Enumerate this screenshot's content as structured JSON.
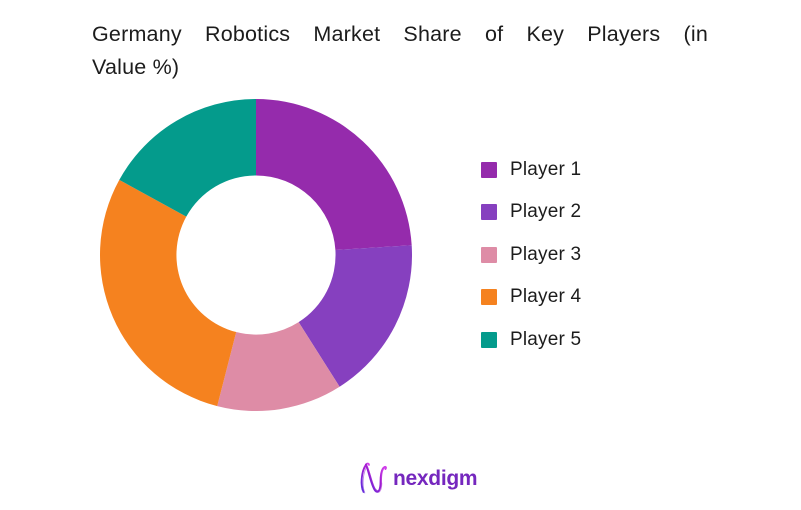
{
  "title": {
    "text": "Germany Robotics Market Share of Key Players (in Value %)",
    "line1": "Germany Robotics Market Share of Key Players (in",
    "line2": "Value %)"
  },
  "chart_data": {
    "type": "pie",
    "subtype": "donut",
    "title": "Germany Robotics Market Share of Key Players (in Value %)",
    "categories": [
      "Player 1",
      "Player 2",
      "Player 3",
      "Player 4",
      "Player 5"
    ],
    "values": [
      24,
      17,
      13,
      29,
      17
    ],
    "unit": "percent of market value",
    "colors": [
      "#952BAC",
      "#8640BF",
      "#DE8CA6",
      "#F5821F",
      "#049B8C"
    ],
    "start_angle_deg": 0,
    "direction": "clockwise",
    "inner_radius_ratio": 0.51,
    "legend_position": "right",
    "data_labels": false,
    "background": "#ffffff"
  },
  "footer": {
    "brand": "nexdigm",
    "brand_color": "#7527BE",
    "logo_gradient": [
      "#5B2EDD",
      "#A21CCF",
      "#D946EF"
    ]
  }
}
